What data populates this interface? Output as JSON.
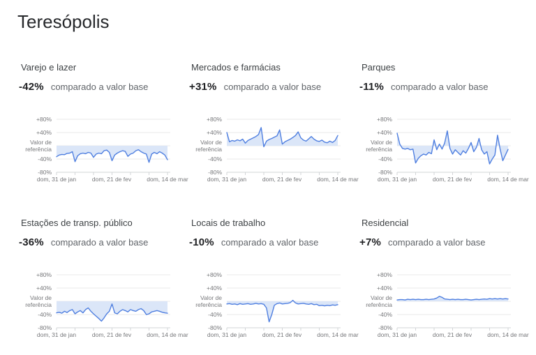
{
  "page": {
    "title": "Teresópolis"
  },
  "style": {
    "line_color": "#4f7fe0",
    "fill_color": "#dbe6f8",
    "grid_color": "#e9e9e9",
    "axis_color": "#d2d4d7",
    "muted_text_color": "#76777a",
    "heading_color": "#27292c"
  },
  "axis": {
    "y_tick_labels": [
      "+80%",
      "+40%",
      "-40%",
      "-80%"
    ],
    "baseline_label": "Valor de referência",
    "x_labels": [
      "dom, 31 de jan",
      "dom, 21 de fev",
      "dom, 14 de mar"
    ],
    "ylim": [
      -80,
      80
    ],
    "x_tick_interval_days": 7
  },
  "chart_data": [
    {
      "type": "area",
      "title": "Varejo e lazer",
      "headline": "-42%",
      "headline_caption": "comparado a valor base",
      "unit": "%",
      "ylim": [
        -80,
        80
      ],
      "values": [
        -33,
        -28,
        -26,
        -27,
        -23,
        -22,
        -18,
        -48,
        -30,
        -24,
        -22,
        -24,
        -20,
        -22,
        -35,
        -25,
        -22,
        -24,
        -15,
        -13,
        -20,
        -45,
        -28,
        -22,
        -18,
        -15,
        -17,
        -32,
        -25,
        -22,
        -15,
        -12,
        -18,
        -22,
        -25,
        -50,
        -25,
        -20,
        -24,
        -18,
        -22,
        -28,
        -42
      ]
    },
    {
      "type": "area",
      "title": "Mercados e farmácias",
      "headline": "+31%",
      "headline_caption": "comparado a valor base",
      "unit": "%",
      "ylim": [
        -80,
        80
      ],
      "values": [
        40,
        12,
        16,
        14,
        18,
        15,
        20,
        8,
        16,
        20,
        24,
        28,
        34,
        55,
        -3,
        14,
        19,
        22,
        26,
        30,
        48,
        5,
        12,
        16,
        20,
        25,
        31,
        42,
        24,
        17,
        14,
        21,
        28,
        20,
        15,
        13,
        17,
        11,
        9,
        14,
        10,
        16,
        31
      ]
    },
    {
      "type": "area",
      "title": "Parques",
      "headline": "-11%",
      "headline_caption": "comparado a valor base",
      "unit": "%",
      "ylim": [
        -80,
        80
      ],
      "values": [
        38,
        5,
        -8,
        -10,
        -8,
        -12,
        -10,
        -52,
        -38,
        -30,
        -25,
        -28,
        -20,
        -24,
        18,
        -12,
        5,
        -10,
        8,
        45,
        -8,
        -25,
        -12,
        -20,
        -28,
        -15,
        -22,
        -8,
        10,
        -18,
        -5,
        22,
        -12,
        -25,
        -18,
        -55,
        -40,
        -28,
        32,
        -10,
        -45,
        -28,
        -11
      ]
    },
    {
      "type": "area",
      "title": "Estações de transp. público",
      "headline": "-36%",
      "headline_caption": "comparado a valor base",
      "unit": "%",
      "ylim": [
        -80,
        80
      ],
      "values": [
        -35,
        -33,
        -36,
        -30,
        -34,
        -28,
        -25,
        -38,
        -32,
        -28,
        -35,
        -25,
        -20,
        -30,
        -38,
        -45,
        -52,
        -60,
        -50,
        -38,
        -30,
        -8,
        -35,
        -38,
        -30,
        -25,
        -28,
        -32,
        -25,
        -28,
        -30,
        -25,
        -22,
        -28,
        -40,
        -38,
        -32,
        -30,
        -28,
        -30,
        -33,
        -35,
        -36
      ]
    },
    {
      "type": "area",
      "title": "Locais de trabalho",
      "headline": "-10%",
      "headline_caption": "comparado a valor base",
      "unit": "%",
      "ylim": [
        -80,
        80
      ],
      "values": [
        -8,
        -7,
        -9,
        -8,
        -10,
        -7,
        -9,
        -8,
        -7,
        -9,
        -8,
        -6,
        -8,
        -7,
        -9,
        -20,
        -62,
        -40,
        -12,
        -7,
        -5,
        -8,
        -7,
        -6,
        -4,
        3,
        -5,
        -8,
        -7,
        -6,
        -8,
        -9,
        -7,
        -10,
        -9,
        -13,
        -12,
        -14,
        -12,
        -13,
        -11,
        -12,
        -10
      ]
    },
    {
      "type": "area",
      "title": "Residencial",
      "headline": "+7%",
      "headline_caption": "comparado a valor base",
      "unit": "%",
      "ylim": [
        -80,
        80
      ],
      "values": [
        4,
        5,
        5,
        4,
        6,
        5,
        6,
        5,
        6,
        5,
        5,
        6,
        5,
        6,
        7,
        10,
        15,
        12,
        7,
        6,
        5,
        6,
        5,
        6,
        5,
        5,
        6,
        5,
        4,
        5,
        6,
        5,
        6,
        7,
        6,
        8,
        7,
        8,
        7,
        8,
        7,
        8,
        7
      ]
    }
  ]
}
